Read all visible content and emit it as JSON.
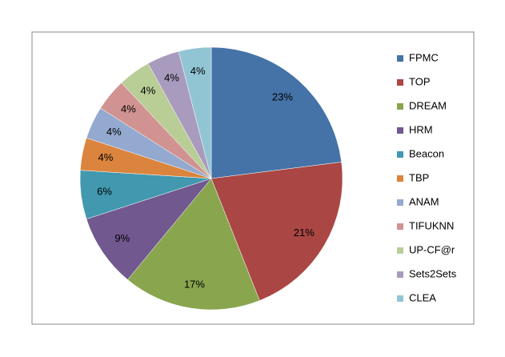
{
  "chart_data": {
    "type": "pie",
    "categories": [
      "FPMC",
      "TOP",
      "DREAM",
      "HRM",
      "Beacon",
      "TBP",
      "ANAM",
      "TIFUKNN",
      "UP-CF@r",
      "Sets2Sets",
      "CLEA"
    ],
    "values": [
      23,
      21,
      17,
      9,
      6,
      4,
      4,
      4,
      4,
      4,
      4
    ],
    "value_labels": [
      "23%",
      "21%",
      "17%",
      "9%",
      "6%",
      "4%",
      "4%",
      "4%",
      "4%",
      "4%",
      "4%"
    ],
    "colors": [
      "#4572A7",
      "#AA4643",
      "#89A54E",
      "#71588F",
      "#4198AF",
      "#DB843D",
      "#93A9CF",
      "#D19392",
      "#B9CD96",
      "#A99BBD",
      "#92C5D4"
    ],
    "legend": "right"
  }
}
